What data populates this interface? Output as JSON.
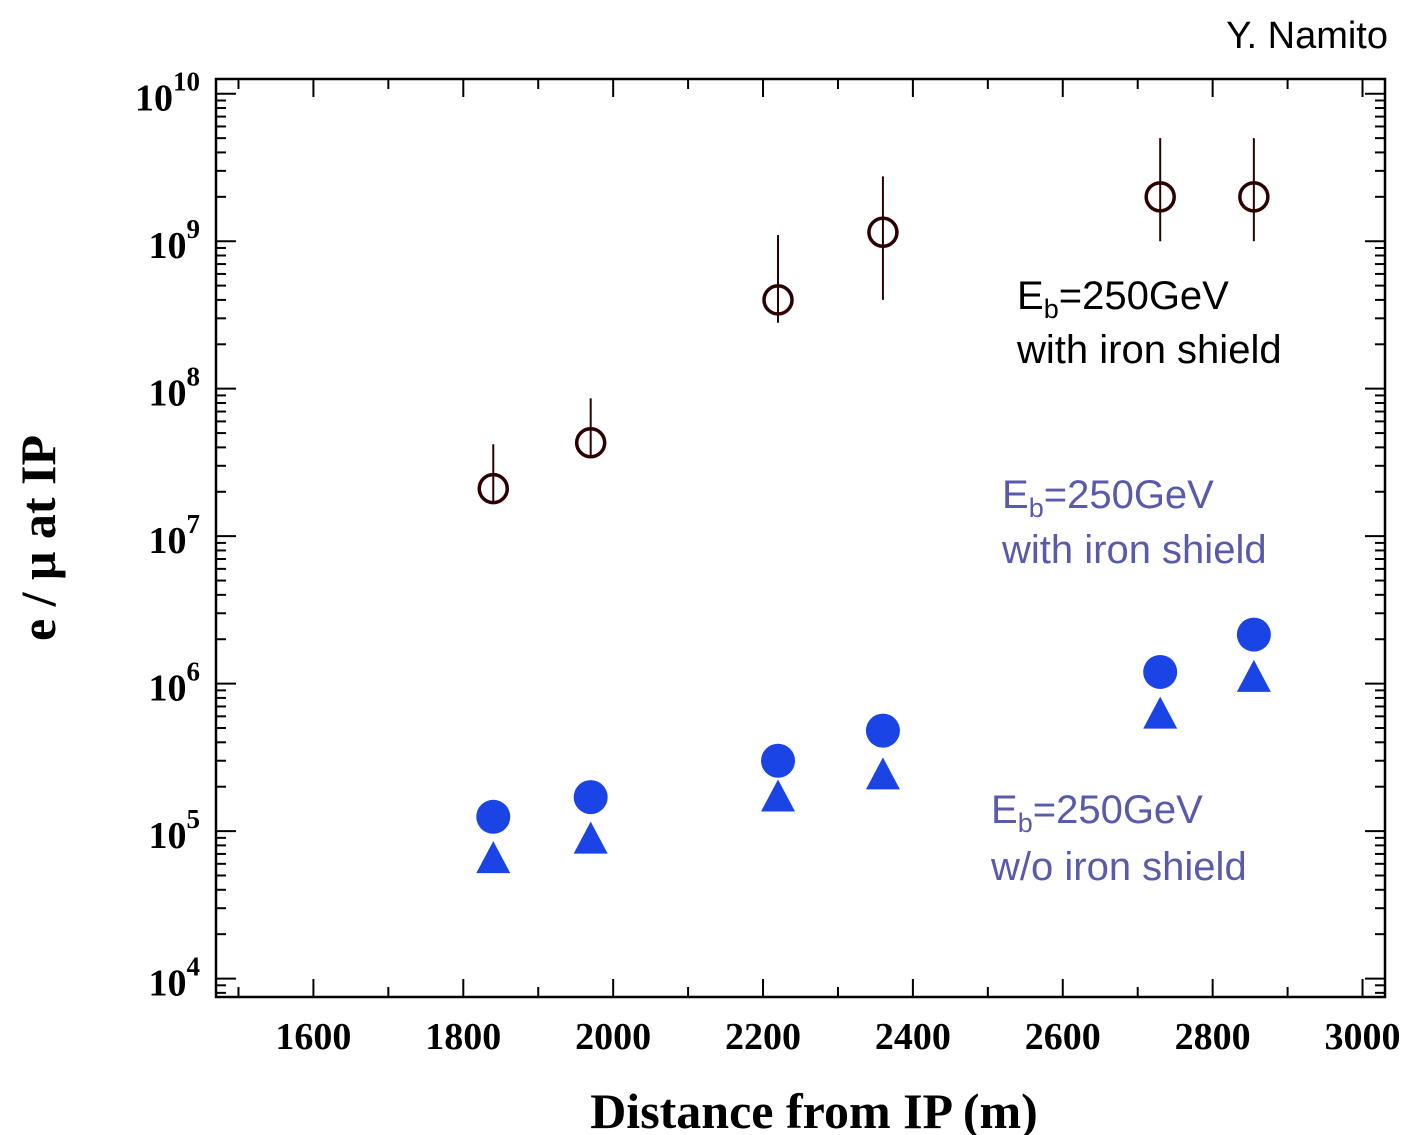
{
  "credit": "Y. Namito",
  "chart_data": {
    "type": "scatter",
    "xlabel": "Distance from IP  (m)",
    "ylabel": "e / μ    at IP",
    "xlim": [
      1470,
      3030
    ],
    "ylim_log10": [
      3.875,
      10.1
    ],
    "yscale": "log",
    "x_ticks": [
      1600,
      1800,
      2000,
      2200,
      2400,
      2600,
      2800,
      3000
    ],
    "x_tick_labels": [
      "1600",
      "1800",
      "2000",
      "2200",
      "2400",
      "2600",
      "2800",
      "3000"
    ],
    "y_ticks": [
      4,
      5,
      6,
      7,
      8,
      9,
      10
    ],
    "y_tick_base": "10",
    "y_tick_exponents": [
      "4",
      "5",
      "6",
      "7",
      "8",
      "9",
      "10"
    ],
    "grid": false,
    "series": [
      {
        "marker": "open-circle",
        "color": "#2a0000",
        "points": [
          {
            "x": 1840,
            "y": 21000000.0,
            "err_lo": 21000000.0,
            "err_hi": 21000000.0
          },
          {
            "x": 1970,
            "y": 43000000.0,
            "err_lo": 43000000.0,
            "err_hi": 43000000.0
          },
          {
            "x": 2220,
            "y": 400000000.0,
            "err_lo": 120000000.0,
            "err_hi": 700000000.0
          },
          {
            "x": 2360,
            "y": 1150000000.0,
            "err_lo": 750000000.0,
            "err_hi": 1600000000.0
          },
          {
            "x": 2730,
            "y": 2000000000.0,
            "err_lo": 1000000000.0,
            "err_hi": 3000000000.0
          },
          {
            "x": 2855,
            "y": 2000000000.0,
            "err_lo": 1000000000.0,
            "err_hi": 3000000000.0
          }
        ]
      },
      {
        "marker": "filled-circle",
        "color": "#1a44e6",
        "points": [
          {
            "x": 1840,
            "y": 125000.0
          },
          {
            "x": 1970,
            "y": 170000.0
          },
          {
            "x": 2220,
            "y": 300000.0
          },
          {
            "x": 2360,
            "y": 480000.0
          },
          {
            "x": 2730,
            "y": 1200000.0
          },
          {
            "x": 2855,
            "y": 2150000.0
          }
        ]
      },
      {
        "marker": "filled-triangle",
        "color": "#1a44e6",
        "points": [
          {
            "x": 1840,
            "y": 65000.0
          },
          {
            "x": 1970,
            "y": 88000.0
          },
          {
            "x": 2220,
            "y": 170000.0
          },
          {
            "x": 2360,
            "y": 240000.0
          },
          {
            "x": 2730,
            "y": 620000.0
          },
          {
            "x": 2855,
            "y": 1100000.0
          }
        ]
      }
    ],
    "annotations": [
      {
        "name": "label-iron-black",
        "line1_main": "E",
        "line1_sub": "b",
        "line1_tail": "=250GeV",
        "line2": "with iron shield",
        "color": "#000000"
      },
      {
        "name": "label-iron-blue",
        "line1_main": "E",
        "line1_sub": "b",
        "line1_tail": "=250GeV",
        "line2": "with iron shield",
        "color": "#5a5aaa"
      },
      {
        "name": "label-no-iron-blue",
        "line1_main": "E",
        "line1_sub": "b",
        "line1_tail": "=250GeV",
        "line2": "w/o iron shield",
        "color": "#5a5aaa"
      }
    ]
  }
}
